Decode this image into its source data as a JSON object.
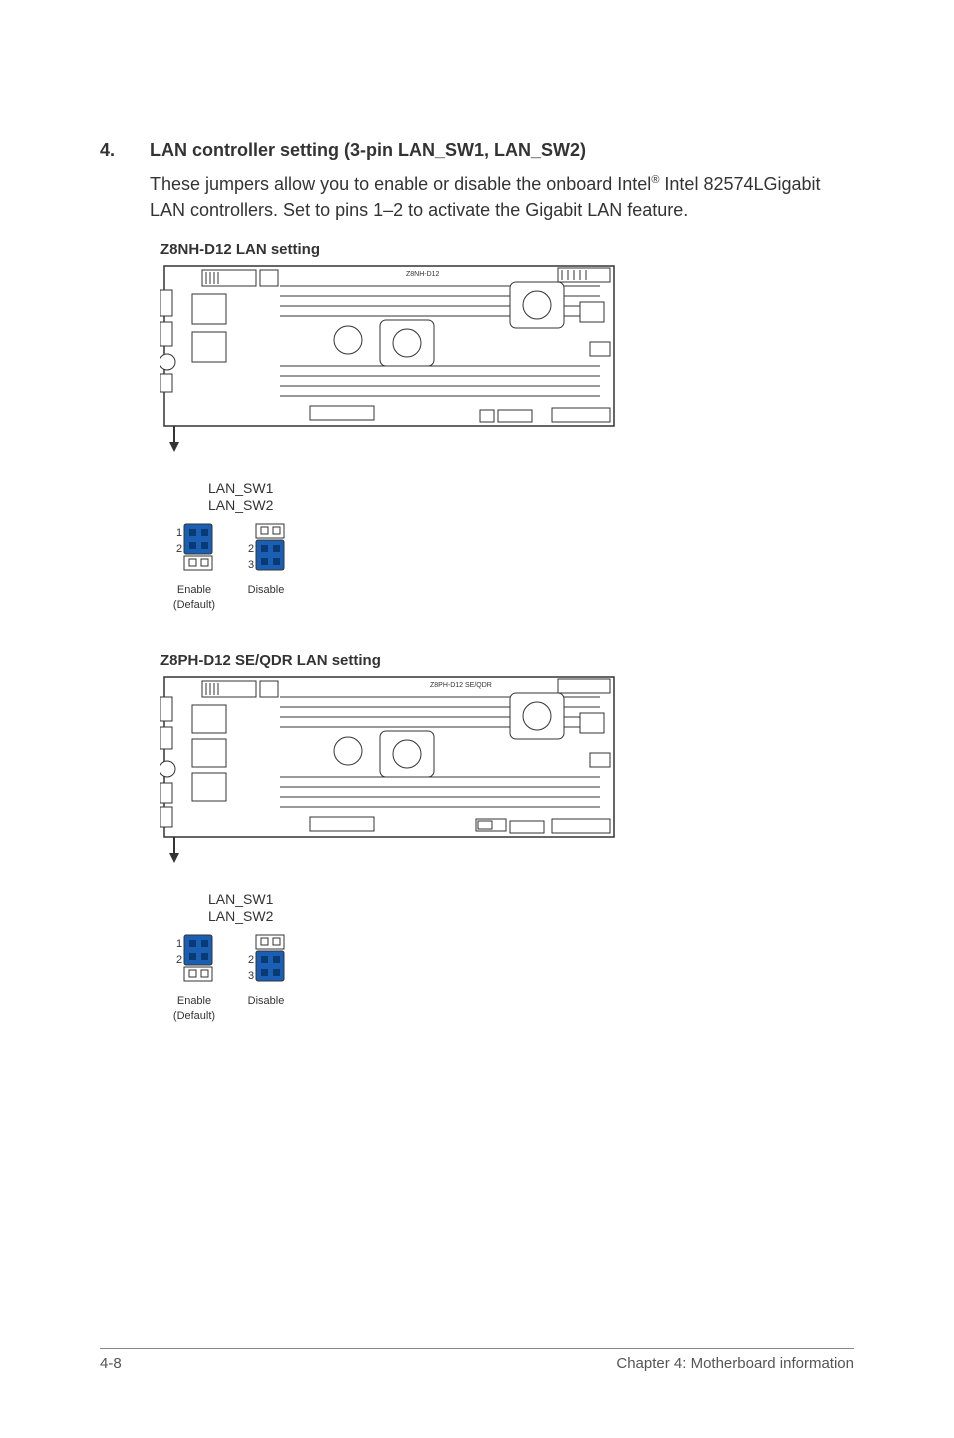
{
  "section": {
    "number": "4.",
    "title": "LAN controller setting (3-pin LAN_SW1, LAN_SW2)",
    "body_html": "These jumpers allow you to enable or disable the onboard Intel<sup>®</sup> Intel 82574LGigabit LAN controllers. Set to pins 1–2 to activate the Gigabit LAN feature."
  },
  "diagrams": [
    {
      "title": "Z8NH-D12 LAN setting",
      "board_label": "Z8NH-D12"
    },
    {
      "title": "Z8PH-D12 SE/QDR LAN setting",
      "board_label": "Z8PH-D12 SE/QDR"
    }
  ],
  "jumpers": {
    "line1": "LAN_SW1",
    "line2": "LAN_SW2",
    "enable": {
      "pins": [
        "1",
        "2"
      ],
      "caption1": "Enable",
      "caption2": "(Default)",
      "cap_color": "#1a5fb4",
      "open_color": "#ffffff",
      "stroke": "#333333"
    },
    "disable": {
      "pins": [
        "2",
        "3"
      ],
      "caption1": "Disable",
      "cap_color": "#1a5fb4",
      "open_color": "#ffffff",
      "stroke": "#333333"
    }
  },
  "footer": {
    "left": "4-8",
    "right": "Chapter 4: Motherboard information"
  },
  "colors": {
    "text": "#333333",
    "board_stroke": "#333333",
    "board_fill": "#ffffff",
    "chip_fill": "#f0f0f0"
  }
}
